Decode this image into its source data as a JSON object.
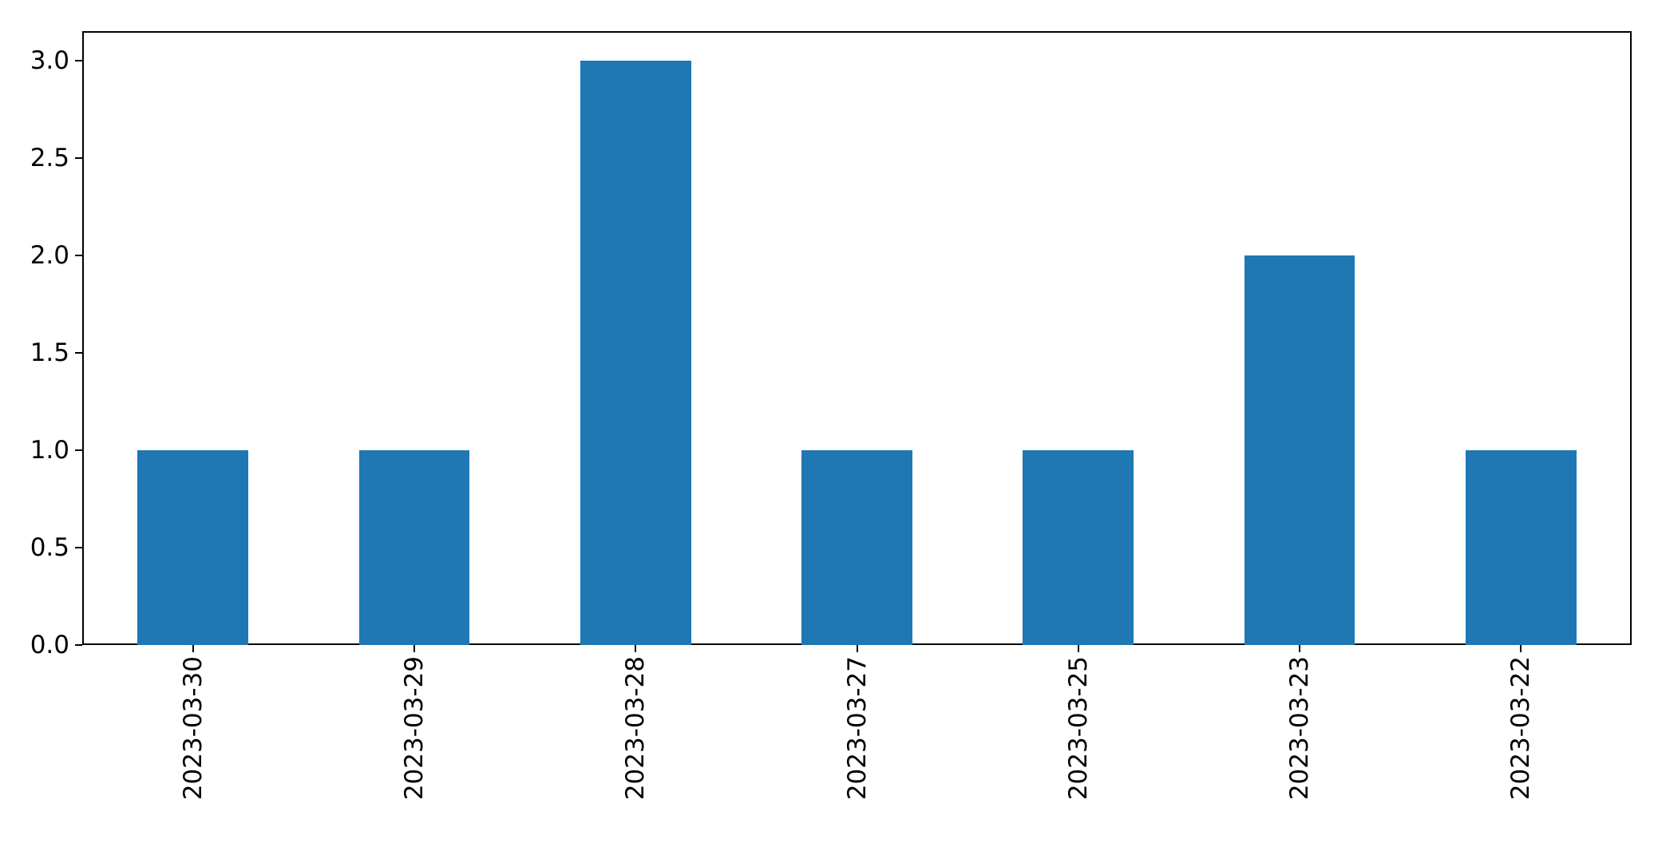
{
  "chart_data": {
    "type": "bar",
    "title": "",
    "xlabel": "",
    "ylabel": "",
    "categories": [
      "2023-03-30",
      "2023-03-29",
      "2023-03-28",
      "2023-03-27",
      "2023-03-25",
      "2023-03-23",
      "2023-03-22"
    ],
    "values": [
      1,
      1,
      3,
      1,
      1,
      2,
      1
    ],
    "ylim": [
      0,
      3.15
    ],
    "yticks": [
      0.0,
      0.5,
      1.0,
      1.5,
      2.0,
      2.5,
      3.0
    ],
    "ytick_labels": [
      "0.0",
      "0.5",
      "1.0",
      "1.5",
      "2.0",
      "2.5",
      "3.0"
    ],
    "bar_color": "#1f77b4",
    "bar_width_fraction": 0.5,
    "x_tick_rotation_deg": 90,
    "grid": false,
    "legend": null
  }
}
